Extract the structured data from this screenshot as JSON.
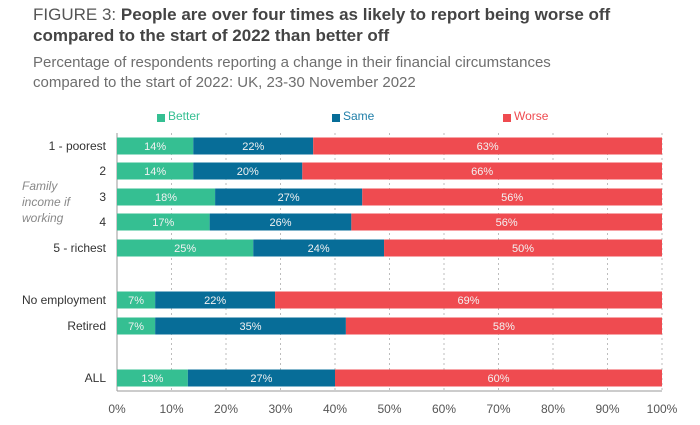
{
  "title": {
    "prefix": "FIGURE 3: ",
    "main_line1": "People are over four times as likely to report being worse off",
    "main_line2": "compared to the start of 2022 than better off"
  },
  "subtitle": {
    "line1": "Percentage of respondents reporting a change in their financial circumstances",
    "line2": "compared to the start of 2022: UK, 23-30 November 2022"
  },
  "colors": {
    "better": "#35bf92",
    "same": "#076d98",
    "worse": "#ef4b50"
  },
  "chart_data": {
    "type": "bar",
    "orientation": "horizontal",
    "stacked": true,
    "title": "FIGURE 3: People are over four times as likely to report being worse off compared to the start of 2022 than better off",
    "subtitle": "Percentage of respondents reporting a change in their financial circumstances compared to the start of 2022: UK, 23-30 November 2022",
    "categories": [
      "1 - poorest",
      "2",
      "3",
      "4",
      "5 - richest",
      "No employment",
      "Retired",
      "ALL"
    ],
    "group_label": [
      "Family",
      "income if",
      "working"
    ],
    "series": [
      {
        "name": "Better",
        "values": [
          14,
          14,
          18,
          17,
          25,
          7,
          7,
          13
        ]
      },
      {
        "name": "Same",
        "values": [
          22,
          20,
          27,
          26,
          24,
          22,
          35,
          27
        ]
      },
      {
        "name": "Worse",
        "values": [
          63,
          66,
          56,
          56,
          50,
          69,
          58,
          60
        ]
      }
    ],
    "data_labels": [
      [
        "14%",
        "22%",
        "63%"
      ],
      [
        "14%",
        "20%",
        "66%"
      ],
      [
        "18%",
        "27%",
        "56%"
      ],
      [
        "17%",
        "26%",
        "56%"
      ],
      [
        "25%",
        "24%",
        "50%"
      ],
      [
        "7%",
        "22%",
        "69%"
      ],
      [
        "7%",
        "35%",
        "58%"
      ],
      [
        "13%",
        "27%",
        "60%"
      ]
    ],
    "xlim": [
      0,
      100
    ],
    "xticks": [
      "0%",
      "10%",
      "20%",
      "30%",
      "40%",
      "50%",
      "60%",
      "70%",
      "80%",
      "90%",
      "100%"
    ],
    "xlabel": "",
    "ylabel": "",
    "grid": "vertical dashed",
    "legend": "top",
    "legend_entries": [
      "Better",
      "Same",
      "Worse"
    ]
  }
}
